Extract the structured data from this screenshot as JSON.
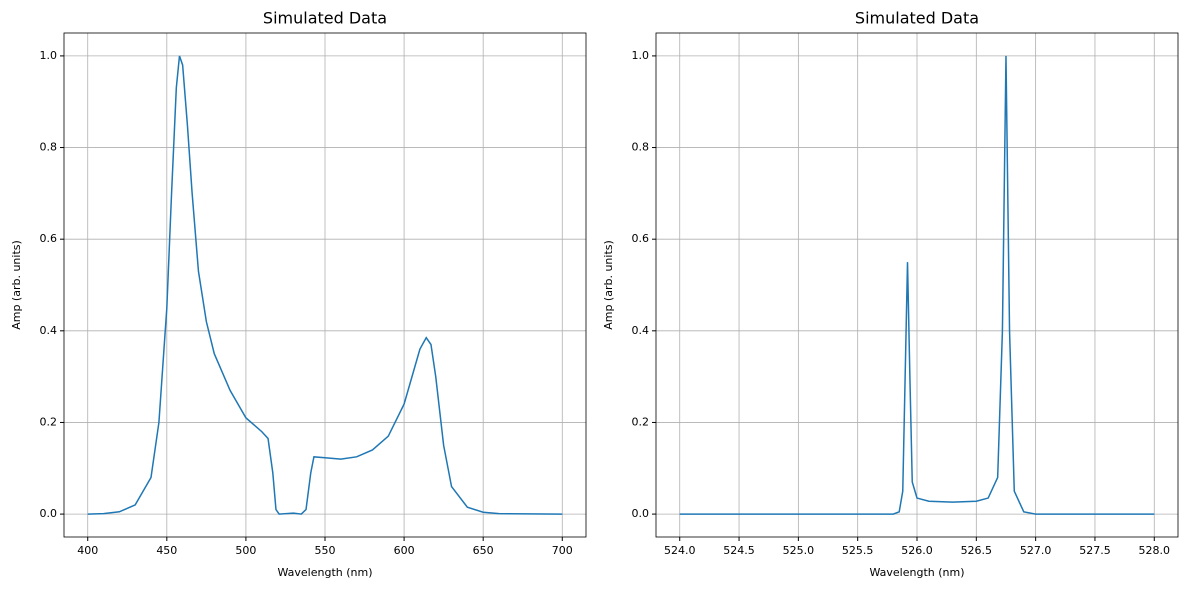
{
  "chart_data": [
    {
      "type": "line",
      "title": "Simulated Data",
      "x_label": "Wavelength (nm)",
      "y_label": "Amp (arb. units)",
      "x": [
        400,
        410,
        420,
        430,
        440,
        445,
        450,
        453,
        456,
        458,
        460,
        463,
        466,
        470,
        475,
        480,
        490,
        500,
        510,
        514,
        517,
        519,
        521,
        530,
        535,
        538,
        541,
        543,
        550,
        560,
        570,
        580,
        590,
        600,
        605,
        610,
        614,
        617,
        620,
        625,
        630,
        640,
        650,
        660,
        700
      ],
      "series": [
        {
          "name": "Simulated Data",
          "color": "#1f77b4",
          "values": [
            0,
            0.001,
            0.005,
            0.02,
            0.08,
            0.2,
            0.45,
            0.7,
            0.93,
            1.0,
            0.98,
            0.85,
            0.7,
            0.53,
            0.42,
            0.35,
            0.27,
            0.21,
            0.18,
            0.165,
            0.09,
            0.01,
            0,
            0.002,
            0,
            0.01,
            0.09,
            0.125,
            0.123,
            0.12,
            0.125,
            0.14,
            0.17,
            0.24,
            0.3,
            0.36,
            0.385,
            0.37,
            0.3,
            0.15,
            0.06,
            0.015,
            0.004,
            0.001,
            0
          ]
        }
      ],
      "xlim": [
        385,
        715
      ],
      "ylim": [
        -0.05,
        1.05
      ],
      "xticks": [
        400,
        450,
        500,
        550,
        600,
        650,
        700
      ],
      "yticks": [
        {
          "value": 0,
          "label": "0.0"
        },
        0.2,
        0.4,
        0.6,
        0.8,
        {
          "value": 1,
          "label": "1.0"
        }
      ],
      "grid": true
    },
    {
      "type": "line",
      "title": "Simulated Data",
      "x_label": "Wavelength (nm)",
      "y_label": "Amp (arb. units)",
      "x": [
        524,
        525.8,
        525.85,
        525.88,
        525.9,
        525.92,
        525.94,
        525.96,
        526,
        526.1,
        526.3,
        526.5,
        526.6,
        526.68,
        526.72,
        526.75,
        526.78,
        526.82,
        526.9,
        527,
        528
      ],
      "series": [
        {
          "name": "Simulated Data",
          "color": "#1f77b4",
          "values": [
            0,
            0,
            0.005,
            0.05,
            0.3,
            0.55,
            0.3,
            0.07,
            0.035,
            0.028,
            0.026,
            0.028,
            0.035,
            0.08,
            0.4,
            1.0,
            0.4,
            0.05,
            0.005,
            0,
            0
          ]
        }
      ],
      "xlim": [
        523.8,
        528.2
      ],
      "ylim": [
        -0.05,
        1.05
      ],
      "xticks": [
        {
          "value": 524,
          "label": "524.0"
        },
        524.5,
        {
          "value": 525,
          "label": "525.0"
        },
        525.5,
        {
          "value": 526,
          "label": "526.0"
        },
        526.5,
        {
          "value": 527,
          "label": "527.0"
        },
        527.5,
        {
          "value": 528,
          "label": "528.0"
        }
      ],
      "yticks": [
        {
          "value": 0,
          "label": "0.0"
        },
        0.2,
        0.4,
        0.6,
        0.8,
        {
          "value": 1,
          "label": "1.0"
        }
      ],
      "grid": true
    }
  ]
}
